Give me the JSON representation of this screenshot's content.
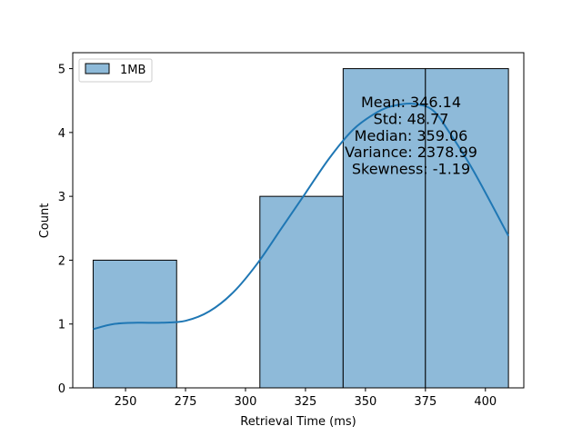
{
  "chart_data": {
    "type": "bar",
    "subtype": "histogram-with-kde",
    "xlabel": "Retrieval Time (ms)",
    "ylabel": "Count",
    "xlim": [
      228,
      416
    ],
    "ylim": [
      0,
      5.25
    ],
    "xticks": [
      250,
      275,
      300,
      325,
      350,
      375,
      400
    ],
    "yticks": [
      0,
      1,
      2,
      3,
      4,
      5
    ],
    "bins": [
      {
        "x0": 236.5,
        "x1": 271.3,
        "count": 2
      },
      {
        "x0": 271.3,
        "x1": 306.0,
        "count": 0
      },
      {
        "x0": 306.0,
        "x1": 340.7,
        "count": 3
      },
      {
        "x0": 340.7,
        "x1": 375.0,
        "count": 5
      },
      {
        "x0": 375.0,
        "x1": 409.6,
        "count": 5
      }
    ],
    "kde": {
      "x": [
        236.5,
        245,
        255,
        265,
        275,
        285,
        295,
        305,
        315,
        325,
        335,
        345,
        355,
        362,
        370,
        378,
        385,
        395,
        409.6
      ],
      "y": [
        0.92,
        1.0,
        1.02,
        1.02,
        1.05,
        1.2,
        1.5,
        1.95,
        2.5,
        3.05,
        3.6,
        4.05,
        4.32,
        4.42,
        4.45,
        4.35,
        4.0,
        3.4,
        2.38
      ]
    },
    "legend": {
      "label": "1MB",
      "position": "upper-left"
    },
    "series_color": "#1f77b4",
    "bar_fill": "#8ebad9",
    "stats": [
      "Mean: 346.14",
      "Std: 48.77",
      "Median: 359.06",
      "Variance: 2378.99",
      "Skewness: -1.19"
    ]
  }
}
